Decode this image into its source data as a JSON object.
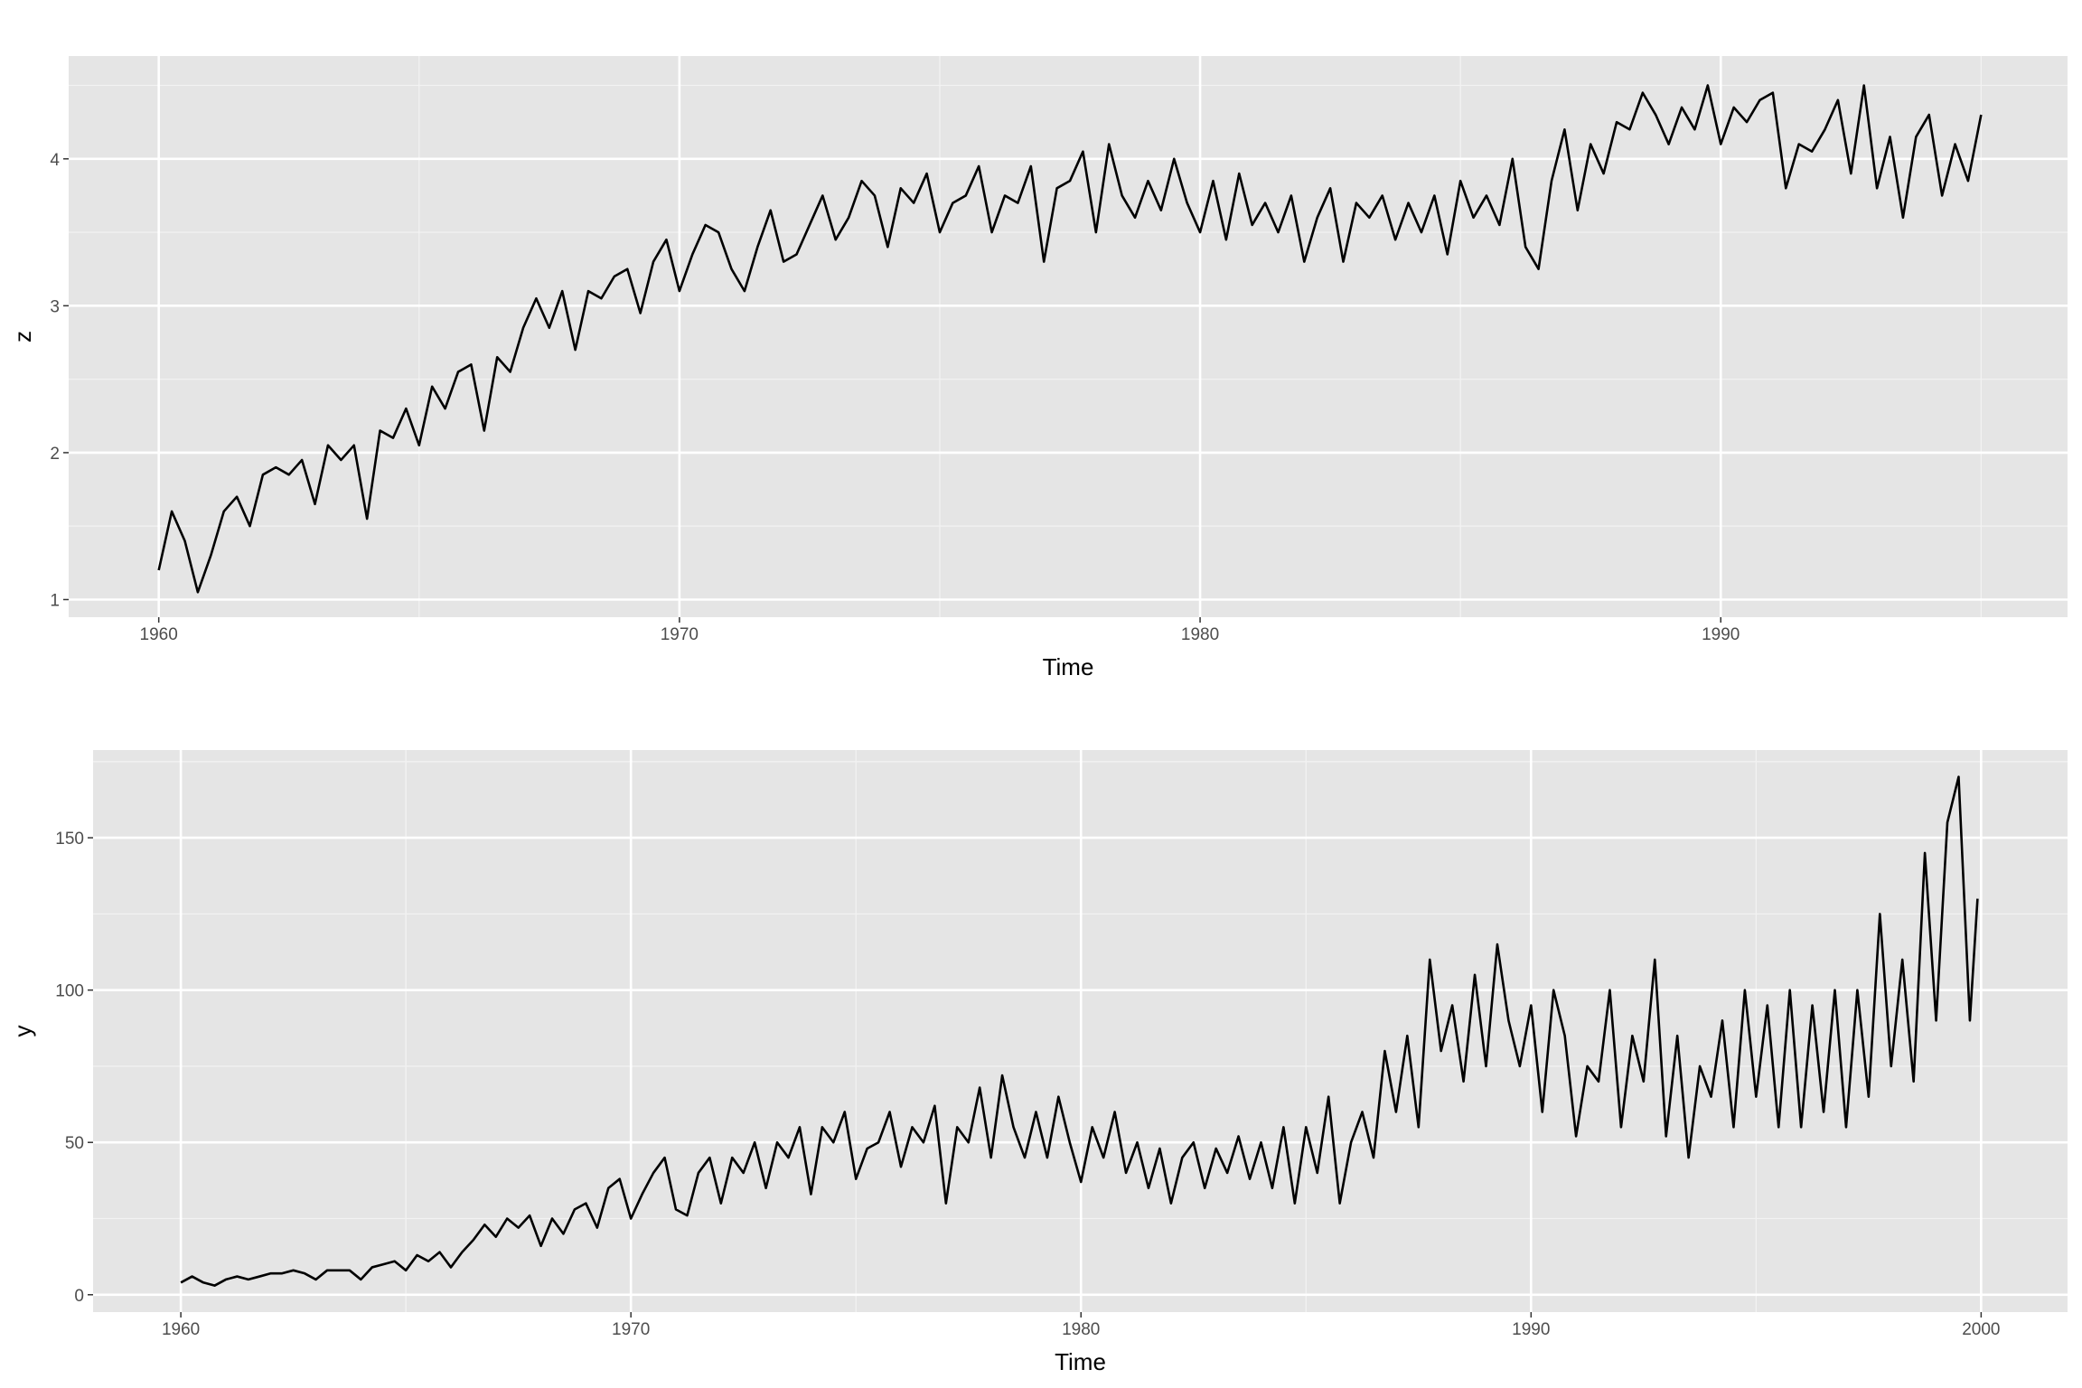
{
  "chart_data": [
    {
      "type": "line",
      "x_label": "Time",
      "y_label": "z",
      "color": "#000000",
      "grid": true,
      "xlim": [
        1958.27,
        1996.66
      ],
      "ylim": [
        0.88,
        4.7
      ],
      "xticks": [
        1960,
        1970,
        1980,
        1990
      ],
      "yticks": [
        1,
        2,
        3,
        4
      ],
      "x_minor": [
        1965,
        1975,
        1985,
        1995
      ],
      "y_minor": [
        1.5,
        2.5,
        3.5,
        4.5
      ],
      "x": [
        1960,
        1960.25,
        1960.5,
        1960.75,
        1961,
        1961.25,
        1961.5,
        1961.75,
        1962,
        1962.25,
        1962.5,
        1962.75,
        1963,
        1963.25,
        1963.5,
        1963.75,
        1964,
        1964.25,
        1964.5,
        1964.75,
        1965,
        1965.25,
        1965.5,
        1965.75,
        1966,
        1966.25,
        1966.5,
        1966.75,
        1967,
        1967.25,
        1967.5,
        1967.75,
        1968,
        1968.25,
        1968.5,
        1968.75,
        1969,
        1969.25,
        1969.5,
        1969.75,
        1970,
        1970.25,
        1970.5,
        1970.75,
        1971,
        1971.25,
        1971.5,
        1971.75,
        1972,
        1972.25,
        1972.5,
        1972.75,
        1973,
        1973.25,
        1973.5,
        1973.75,
        1974,
        1974.25,
        1974.5,
        1974.75,
        1975,
        1975.25,
        1975.5,
        1975.75,
        1976,
        1976.25,
        1976.5,
        1976.75,
        1977,
        1977.25,
        1977.5,
        1977.75,
        1978,
        1978.25,
        1978.5,
        1978.75,
        1979,
        1979.25,
        1979.5,
        1979.75,
        1980,
        1980.25,
        1980.5,
        1980.75,
        1981,
        1981.25,
        1981.5,
        1981.75,
        1982,
        1982.25,
        1982.5,
        1982.75,
        1983,
        1983.25,
        1983.5,
        1983.75,
        1984,
        1984.25,
        1984.5,
        1984.75,
        1985,
        1985.25,
        1985.5,
        1985.75,
        1986,
        1986.25,
        1986.5,
        1986.75,
        1987,
        1987.25,
        1987.5,
        1987.75,
        1988,
        1988.25,
        1988.5,
        1988.75,
        1989,
        1989.25,
        1989.5,
        1989.75,
        1990,
        1990.25,
        1990.5,
        1990.75,
        1991,
        1991.25,
        1991.5,
        1991.75,
        1992,
        1992.25,
        1992.5,
        1992.75,
        1993,
        1993.25,
        1993.5,
        1993.75,
        1994,
        1994.25,
        1994.5,
        1994.75,
        1995
      ],
      "values": [
        1.2,
        1.6,
        1.4,
        1.05,
        1.3,
        1.6,
        1.7,
        1.5,
        1.85,
        1.9,
        1.85,
        1.95,
        1.65,
        2.05,
        1.95,
        2.05,
        1.55,
        2.15,
        2.1,
        2.3,
        2.05,
        2.45,
        2.3,
        2.55,
        2.6,
        2.15,
        2.65,
        2.55,
        2.85,
        3.05,
        2.85,
        3.1,
        2.7,
        3.1,
        3.05,
        3.2,
        3.25,
        2.95,
        3.3,
        3.45,
        3.1,
        3.35,
        3.55,
        3.5,
        3.25,
        3.1,
        3.4,
        3.65,
        3.3,
        3.35,
        3.55,
        3.75,
        3.45,
        3.6,
        3.85,
        3.75,
        3.4,
        3.8,
        3.7,
        3.9,
        3.5,
        3.7,
        3.75,
        3.95,
        3.5,
        3.75,
        3.7,
        3.95,
        3.3,
        3.8,
        3.85,
        4.05,
        3.5,
        4.1,
        3.75,
        3.6,
        3.85,
        3.65,
        4.0,
        3.7,
        3.5,
        3.85,
        3.45,
        3.9,
        3.55,
        3.7,
        3.5,
        3.75,
        3.3,
        3.6,
        3.8,
        3.3,
        3.7,
        3.6,
        3.75,
        3.45,
        3.7,
        3.5,
        3.75,
        3.35,
        3.85,
        3.6,
        3.75,
        3.55,
        4.0,
        3.4,
        3.25,
        3.85,
        4.2,
        3.65,
        4.1,
        3.9,
        4.25,
        4.2,
        4.45,
        4.3,
        4.1,
        4.35,
        4.2,
        4.5,
        4.1,
        4.35,
        4.25,
        4.4,
        4.45,
        3.8,
        4.1,
        4.05,
        4.2,
        4.4,
        3.9,
        4.5,
        3.8,
        4.15,
        3.6,
        4.15,
        4.3,
        3.75,
        4.1,
        3.85,
        4.3
      ]
    },
    {
      "type": "line",
      "x_label": "Time",
      "y_label": "y",
      "color": "#000000",
      "grid": true,
      "xlim": [
        1958.05,
        2001.92
      ],
      "ylim": [
        -5.7,
        178.8
      ],
      "xticks": [
        1960,
        1970,
        1980,
        1990,
        2000
      ],
      "yticks": [
        0,
        50,
        100,
        150
      ],
      "x_minor": [
        1965,
        1975,
        1985,
        1995
      ],
      "y_minor": [
        25,
        75,
        125,
        175
      ],
      "x": [
        1960,
        1960.25,
        1960.5,
        1960.75,
        1961,
        1961.25,
        1961.5,
        1961.75,
        1962,
        1962.25,
        1962.5,
        1962.75,
        1963,
        1963.25,
        1963.5,
        1963.75,
        1964,
        1964.25,
        1964.5,
        1964.75,
        1965,
        1965.25,
        1965.5,
        1965.75,
        1966,
        1966.25,
        1966.5,
        1966.75,
        1967,
        1967.25,
        1967.5,
        1967.75,
        1968,
        1968.25,
        1968.5,
        1968.75,
        1969,
        1969.25,
        1969.5,
        1969.75,
        1970,
        1970.25,
        1970.5,
        1970.75,
        1971,
        1971.25,
        1971.5,
        1971.75,
        1972,
        1972.25,
        1972.5,
        1972.75,
        1973,
        1973.25,
        1973.5,
        1973.75,
        1974,
        1974.25,
        1974.5,
        1974.75,
        1975,
        1975.25,
        1975.5,
        1975.75,
        1976,
        1976.25,
        1976.5,
        1976.75,
        1977,
        1977.25,
        1977.5,
        1977.75,
        1978,
        1978.25,
        1978.5,
        1978.75,
        1979,
        1979.25,
        1979.5,
        1979.75,
        1980,
        1980.25,
        1980.5,
        1980.75,
        1981,
        1981.25,
        1981.5,
        1981.75,
        1982,
        1982.25,
        1982.5,
        1982.75,
        1983,
        1983.25,
        1983.5,
        1983.75,
        1984,
        1984.25,
        1984.5,
        1984.75,
        1985,
        1985.25,
        1985.5,
        1985.75,
        1986,
        1986.25,
        1986.5,
        1986.75,
        1987,
        1987.25,
        1987.5,
        1987.75,
        1988,
        1988.25,
        1988.5,
        1988.75,
        1989,
        1989.25,
        1989.5,
        1989.75,
        1990,
        1990.25,
        1990.5,
        1990.75,
        1991,
        1991.25,
        1991.5,
        1991.75,
        1992,
        1992.25,
        1992.5,
        1992.75,
        1993,
        1993.25,
        1993.5,
        1993.75,
        1994,
        1994.25,
        1994.5,
        1994.75,
        1995,
        1995.25,
        1995.5,
        1995.75,
        1996,
        1996.25,
        1996.5,
        1996.75,
        1997,
        1997.25,
        1997.5,
        1997.75,
        1998,
        1998.25,
        1998.5,
        1998.75,
        1999,
        1999.25,
        1999.5,
        1999.75,
        1999.92
      ],
      "values": [
        4,
        6,
        4,
        3,
        5,
        6,
        5,
        6,
        7,
        7,
        8,
        7,
        5,
        8,
        8,
        8,
        5,
        9,
        10,
        11,
        8,
        13,
        11,
        14,
        9,
        14,
        18,
        23,
        19,
        25,
        22,
        26,
        16,
        25,
        20,
        28,
        30,
        22,
        35,
        38,
        25,
        33,
        40,
        45,
        28,
        26,
        40,
        45,
        30,
        45,
        40,
        50,
        35,
        50,
        45,
        55,
        33,
        55,
        50,
        60,
        38,
        48,
        50,
        60,
        42,
        55,
        50,
        62,
        30,
        55,
        50,
        68,
        45,
        72,
        55,
        45,
        60,
        45,
        65,
        50,
        37,
        55,
        45,
        60,
        40,
        50,
        35,
        48,
        30,
        45,
        50,
        35,
        48,
        40,
        52,
        38,
        50,
        35,
        55,
        30,
        55,
        40,
        65,
        30,
        50,
        60,
        45,
        80,
        60,
        85,
        55,
        110,
        80,
        95,
        70,
        105,
        75,
        115,
        90,
        75,
        95,
        60,
        100,
        85,
        52,
        75,
        70,
        100,
        55,
        85,
        70,
        110,
        52,
        85,
        45,
        75,
        65,
        90,
        55,
        100,
        65,
        95,
        55,
        100,
        55,
        95,
        60,
        100,
        55,
        100,
        65,
        125,
        75,
        110,
        70,
        145,
        90,
        155,
        170,
        90,
        130
      ]
    }
  ]
}
